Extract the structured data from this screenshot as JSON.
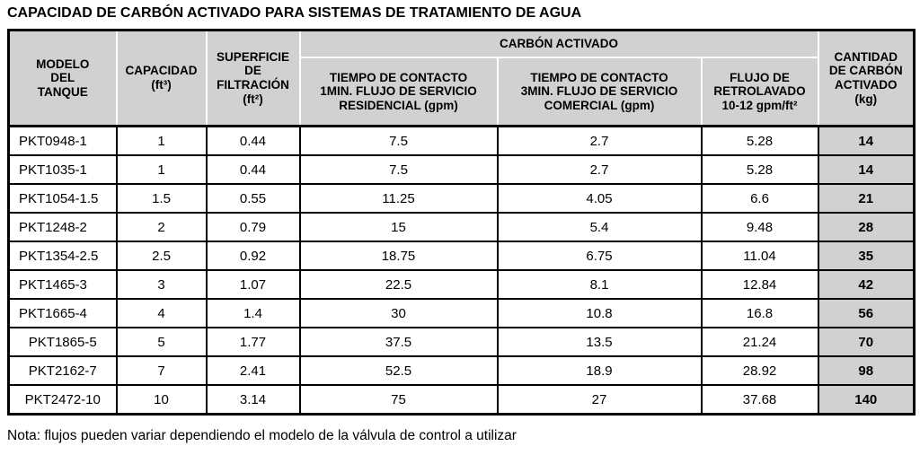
{
  "title": "CAPACIDAD DE CARBÓN ACTIVADO PARA SISTEMAS DE TRATAMIENTO DE AGUA",
  "note": "Nota: flujos pueden variar dependiendo el modelo de la válvula de control a utilizar",
  "colors": {
    "header_bg": "#d1d1d1",
    "highlight_column_bg": "#d1d1d1",
    "border": "#000000",
    "header_separator": "#ffffff"
  },
  "table": {
    "group_header": "CARBÓN ACTIVADO",
    "headers": {
      "model": "MODELO\nDEL\nTANQUE",
      "capacity": "CAPACIDAD\n(ft³)",
      "surface": "SUPERFICIE\nDE\nFILTRACIÓN\n(ft²)",
      "residential": "TIEMPO DE CONTACTO\n1MIN. FLUJO DE SERVICIO\nRESIDENCIAL (gpm)",
      "commercial": "TIEMPO DE CONTACTO\n3MIN. FLUJO DE SERVICIO\nCOMERCIAL (gpm)",
      "backwash": "FLUJO DE\nRETROLAVADO\n10-12 gpm/ft²",
      "carbon_qty": "CANTIDAD\nDE CARBÓN\nACTIVADO\n(kg)"
    },
    "rows": [
      [
        "PKT0948-1",
        "1",
        "0.44",
        "7.5",
        "2.7",
        "5.28",
        "14"
      ],
      [
        "PKT1035-1",
        "1",
        "0.44",
        "7.5",
        "2.7",
        "5.28",
        "14"
      ],
      [
        "PKT1054-1.5",
        "1.5",
        "0.55",
        "11.25",
        "4.05",
        "6.6",
        "21"
      ],
      [
        "PKT1248-2",
        "2",
        "0.79",
        "15",
        "5.4",
        "9.48",
        "28"
      ],
      [
        "PKT1354-2.5",
        "2.5",
        "0.92",
        "18.75",
        "6.75",
        "11.04",
        "35"
      ],
      [
        "PKT1465-3",
        "3",
        "1.07",
        "22.5",
        "8.1",
        "12.84",
        "42"
      ],
      [
        "PKT1665-4",
        "4",
        "1.4",
        "30",
        "10.8",
        "16.8",
        "56"
      ],
      [
        "PKT1865-5",
        "5",
        "1.77",
        "37.5",
        "13.5",
        "21.24",
        "70"
      ],
      [
        "PKT2162-7",
        "7",
        "2.41",
        "52.5",
        "18.9",
        "28.92",
        "98"
      ],
      [
        "PKT2472-10",
        "10",
        "3.14",
        "75",
        "27",
        "37.68",
        "140"
      ]
    ]
  }
}
